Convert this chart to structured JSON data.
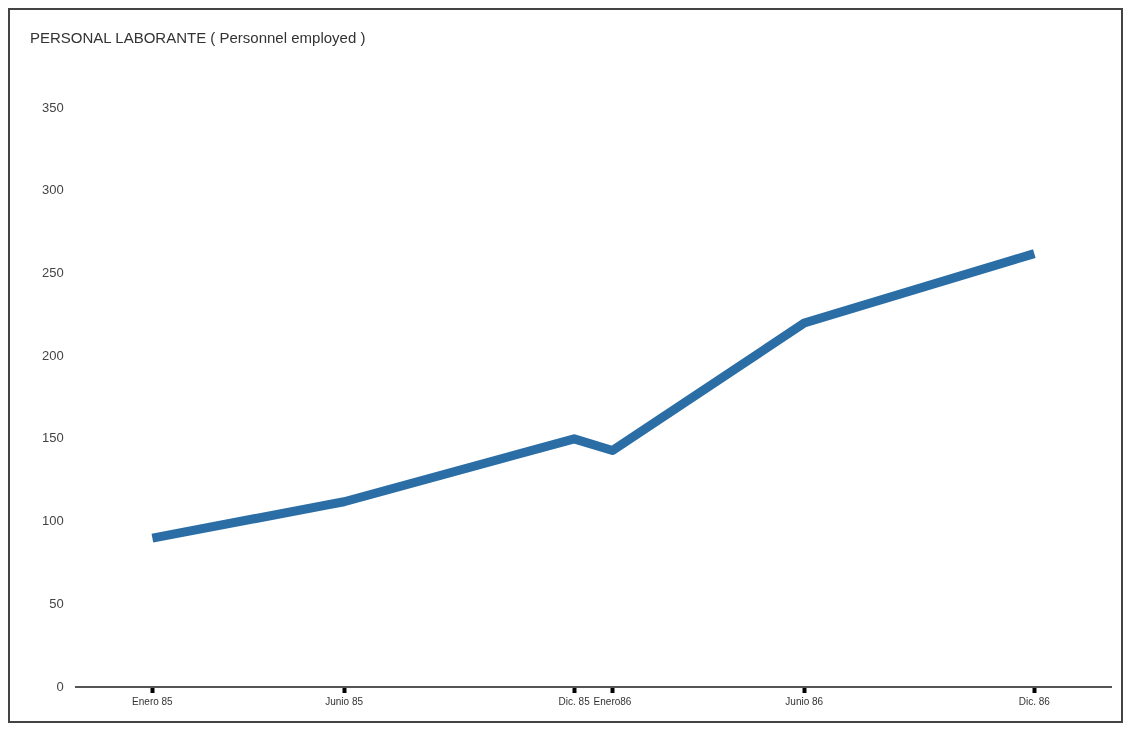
{
  "chart_data": {
    "type": "line",
    "title": "PERSONAL LABORANTE ( Personnel employed )",
    "x": [
      "1985-01",
      "1985-06",
      "1985-12",
      "1986-01",
      "1986-06",
      "1986-12"
    ],
    "series": [
      {
        "color": "#2b6ea6",
        "values": [
          90,
          112,
          150,
          143,
          220,
          262
        ]
      }
    ],
    "xlim": [
      "1984-11",
      "1987-02"
    ],
    "xticks": [
      {
        "value": "1985-01",
        "label": "Enero 85"
      },
      {
        "value": "1985-06",
        "label": "Junio 85"
      },
      {
        "value": "1985-12",
        "label": "Dic. 85"
      },
      {
        "value": "1986-01",
        "label": "Enero86"
      },
      {
        "value": "1986-06",
        "label": "Junio 86"
      },
      {
        "value": "1986-12",
        "label": "Dic. 86"
      }
    ],
    "ylim": [
      0,
      350
    ],
    "yticks": [
      0,
      50,
      100,
      150,
      200,
      250,
      300,
      350
    ],
    "grid": false,
    "legend": false,
    "marker": "none",
    "line_style": "solid"
  }
}
